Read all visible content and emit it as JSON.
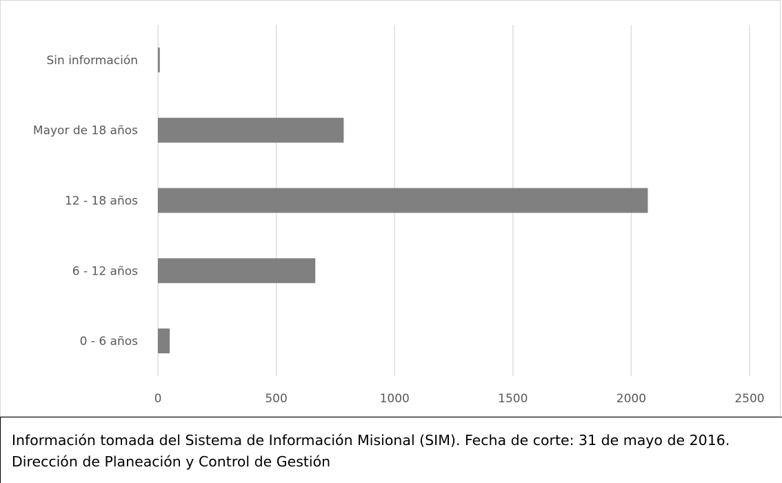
{
  "chart_data": {
    "type": "bar",
    "orientation": "horizontal",
    "categories": [
      "0 - 6 años",
      "6 - 12 años",
      "12 - 18 años",
      "Mayor de 18 años",
      "Sin información"
    ],
    "values": [
      50,
      665,
      2070,
      785,
      8
    ],
    "xlim": [
      0,
      2500
    ],
    "x_ticks": [
      "0",
      "500",
      "1000",
      "1500",
      "2000",
      "2500"
    ],
    "grid": "vertical",
    "bar_color": "#808080",
    "title": "",
    "xlabel": "",
    "ylabel": ""
  },
  "caption": {
    "text": "Información tomada del Sistema de Información Misional (SIM). Fecha de corte: 31 de mayo de 2016. Dirección de Planeación y Control de Gestión"
  }
}
